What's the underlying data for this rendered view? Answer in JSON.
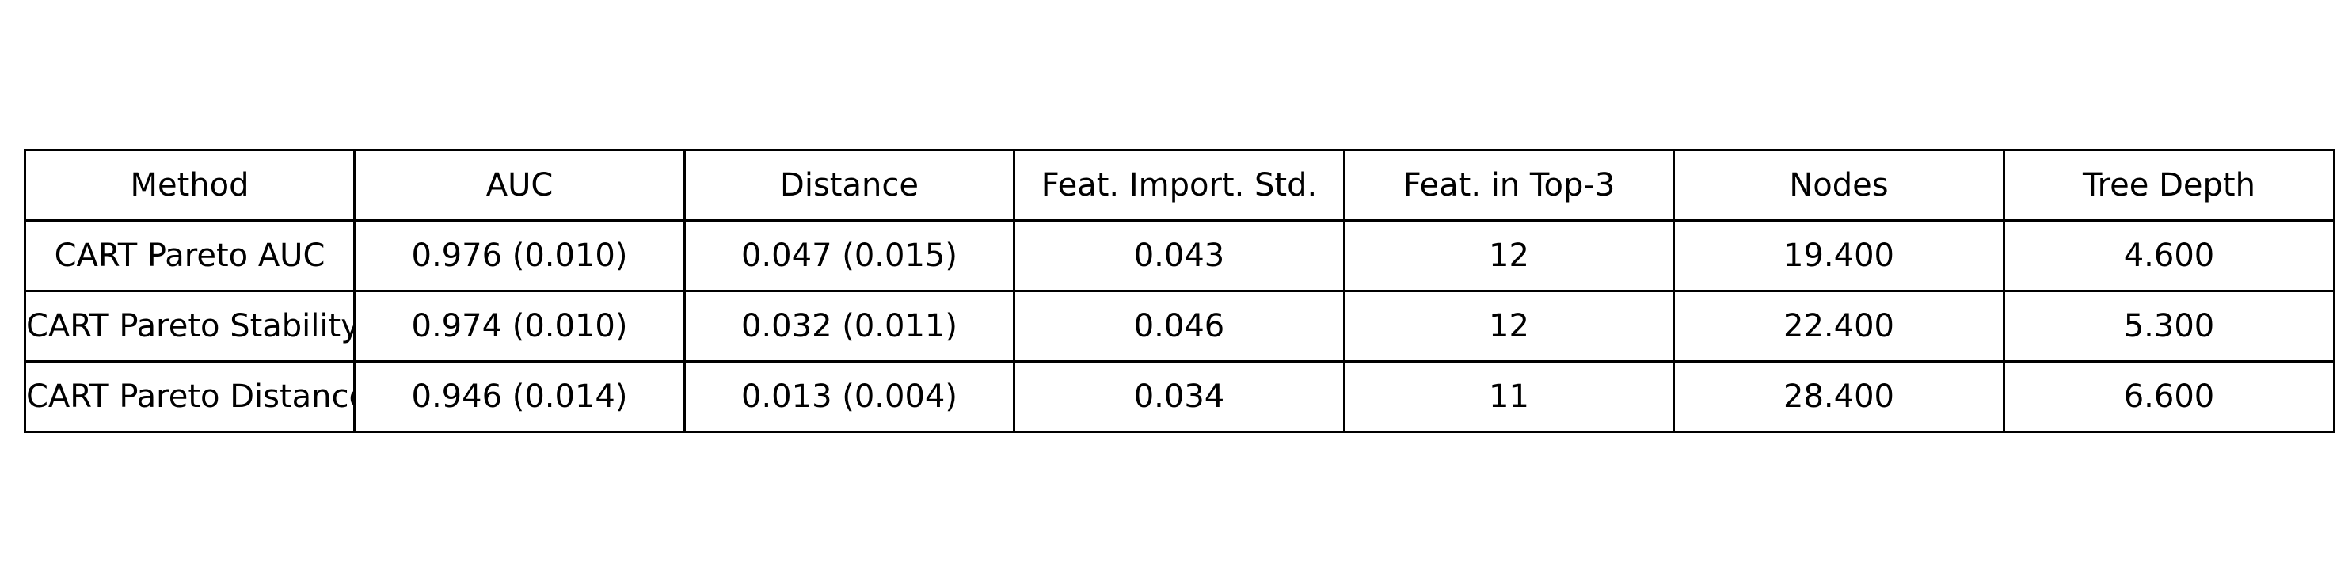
{
  "chart_data": {
    "type": "table",
    "columns": [
      "Method",
      "AUC",
      "Distance",
      "Feat. Import. Std.",
      "Feat. in Top-3",
      "Nodes",
      "Tree Depth"
    ],
    "rows": [
      [
        "CART Pareto AUC",
        "0.976 (0.010)",
        "0.047 (0.015)",
        "0.043",
        "12",
        "19.400",
        "4.600"
      ],
      [
        "CART Pareto Stability",
        "0.974 (0.010)",
        "0.032 (0.011)",
        "0.046",
        "12",
        "22.400",
        "5.300"
      ],
      [
        "CART Pareto Distance",
        "0.946 (0.014)",
        "0.013 (0.004)",
        "0.034",
        "11",
        "28.400",
        "6.600"
      ]
    ]
  }
}
